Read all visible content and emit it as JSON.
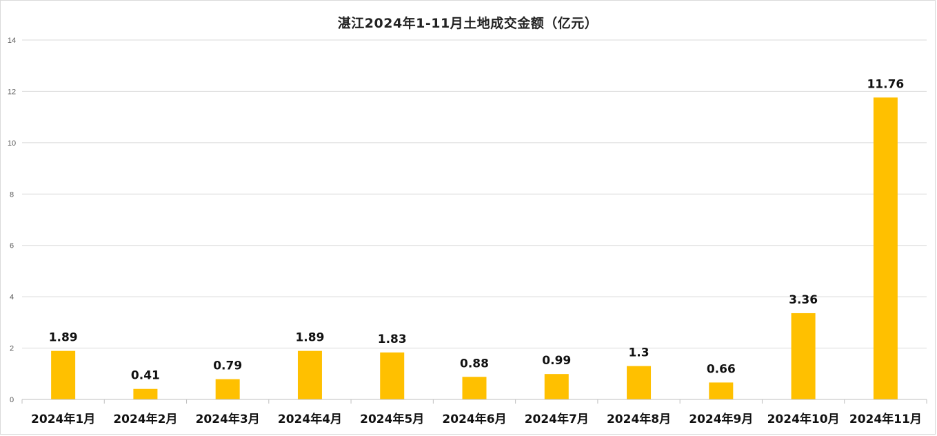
{
  "chart_data": {
    "type": "bar",
    "title": "湛江2024年1-11月土地成交金额（亿元）",
    "xlabel": "",
    "ylabel": "",
    "categories": [
      "2024年1月",
      "2024年2月",
      "2024年3月",
      "2024年4月",
      "2024年5月",
      "2024年6月",
      "2024年7月",
      "2024年8月",
      "2024年9月",
      "2024年10月",
      "2024年11月"
    ],
    "values": [
      1.89,
      0.41,
      0.79,
      1.89,
      1.83,
      0.88,
      0.99,
      1.3,
      0.66,
      3.36,
      11.76
    ],
    "data_labels": [
      "1.89",
      "0.41",
      "0.79",
      "1.89",
      "1.83",
      "0.88",
      "0.99",
      "1.3",
      "0.66",
      "3.36",
      "11.76"
    ],
    "ylim": [
      0,
      14
    ],
    "yticks": [
      0,
      2,
      4,
      6,
      8,
      10,
      12,
      14
    ],
    "grid": true,
    "legend": "none",
    "bar_color": "#FFC000",
    "grid_color": "#d9d9d9"
  }
}
